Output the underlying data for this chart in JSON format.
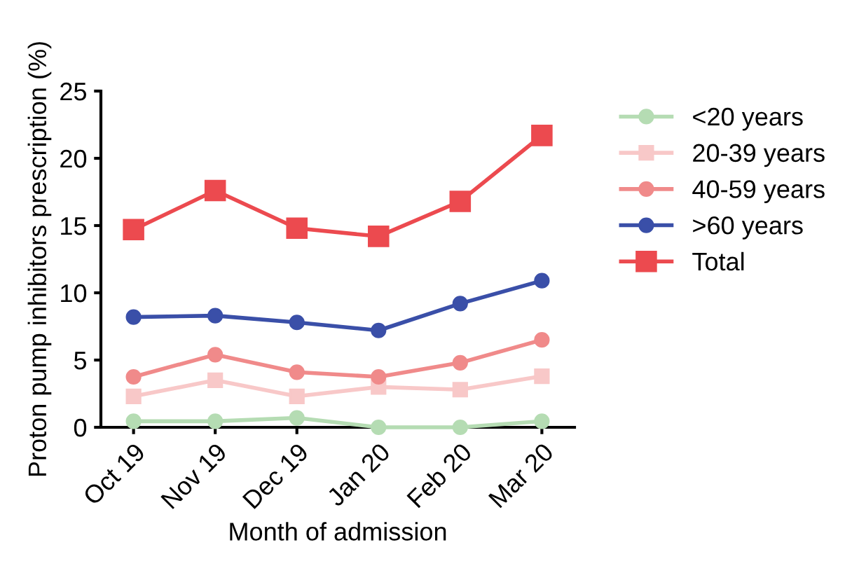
{
  "chart_data": {
    "type": "line",
    "xlabel": "Month of admission",
    "ylabel": "Proton pump inhibitors prescription (%)",
    "categories": [
      "Oct 19",
      "Nov 19",
      "Dec 19",
      "Jan 20",
      "Feb 20",
      "Mar 20"
    ],
    "ylim": [
      0,
      25
    ],
    "yticks": [
      0,
      5,
      10,
      15,
      20,
      25
    ],
    "grid": false,
    "legend": "right",
    "line_style": "solid",
    "series": [
      {
        "name": "<20 years",
        "color": "#b5dcb3",
        "marker": "circle",
        "values": [
          0.45,
          0.45,
          0.7,
          0,
          0,
          0.45
        ]
      },
      {
        "name": "20-39 years",
        "color": "#f8c8c8",
        "marker": "square",
        "values": [
          2.3,
          3.5,
          2.3,
          3.0,
          2.8,
          3.8
        ]
      },
      {
        "name": "40-59 years",
        "color": "#f08a8a",
        "marker": "circle",
        "values": [
          3.75,
          5.4,
          4.1,
          3.75,
          4.8,
          6.5
        ]
      },
      {
        "name": ">60 years",
        "color": "#3a4fa8",
        "marker": "circle",
        "values": [
          8.2,
          8.3,
          7.8,
          7.2,
          9.2,
          10.9
        ]
      },
      {
        "name": "Total",
        "color": "#ec4a4f",
        "marker": "square",
        "values": [
          14.7,
          17.6,
          14.8,
          14.2,
          16.8,
          21.7
        ]
      }
    ]
  }
}
